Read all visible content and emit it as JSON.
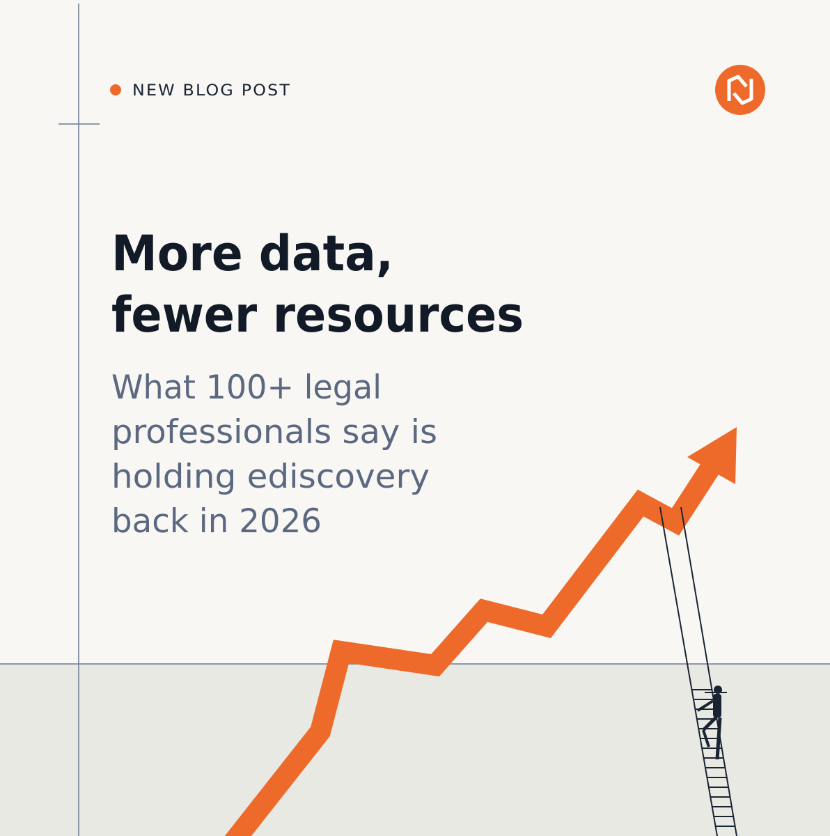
{
  "label": "NEW BLOG POST",
  "title": {
    "lines": [
      "More data,",
      "fewer resources"
    ]
  },
  "subtitle": {
    "lines": [
      "What 100+ legal",
      "professionals say is",
      "holding ediscovery",
      "back in 2026"
    ]
  }
}
